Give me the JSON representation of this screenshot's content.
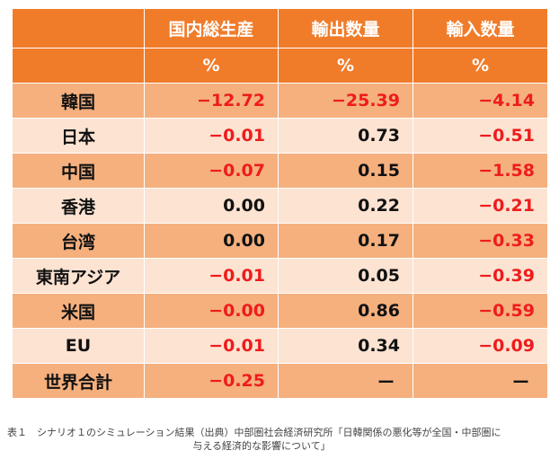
{
  "table": {
    "headers": [
      "",
      "国内総生産",
      "輸出数量",
      "輸入数量"
    ],
    "units": [
      "",
      "%",
      "%",
      "%"
    ],
    "rows": [
      {
        "label": "韓国",
        "values": [
          "−12.72",
          "−25.39",
          "−4.14"
        ],
        "negative": [
          true,
          true,
          true
        ]
      },
      {
        "label": "日本",
        "values": [
          "−0.01",
          "0.73",
          "−0.51"
        ],
        "negative": [
          true,
          false,
          true
        ]
      },
      {
        "label": "中国",
        "values": [
          "−0.07",
          "0.15",
          "−1.58"
        ],
        "negative": [
          true,
          false,
          true
        ]
      },
      {
        "label": "香港",
        "values": [
          "0.00",
          "0.22",
          "−0.21"
        ],
        "negative": [
          false,
          false,
          true
        ]
      },
      {
        "label": "台湾",
        "values": [
          "0.00",
          "0.17",
          "−0.33"
        ],
        "negative": [
          false,
          false,
          true
        ]
      },
      {
        "label": "東南アジア",
        "values": [
          "−0.01",
          "0.05",
          "−0.39"
        ],
        "negative": [
          true,
          false,
          true
        ]
      },
      {
        "label": "米国",
        "values": [
          "−0.00",
          "0.86",
          "−0.59"
        ],
        "negative": [
          true,
          false,
          true
        ]
      },
      {
        "label": "EU",
        "values": [
          "−0.01",
          "0.34",
          "−0.09"
        ],
        "negative": [
          true,
          false,
          true
        ]
      },
      {
        "label": "世界合計",
        "values": [
          "−0.25",
          "ー",
          "ー"
        ],
        "negative": [
          true,
          false,
          false
        ]
      }
    ]
  },
  "caption": {
    "line1": "表１　シナリオ１のシミュレーション結果（出典）中部圏社会経済研究所「日韓関係の悪化等が全国・中部圏に",
    "line2": "与える経済的な影響について」"
  },
  "colors": {
    "header": "#f07c2a",
    "row_dark": "#f5b07e",
    "row_light": "#fce3d2",
    "negative": "#ee1c1c"
  }
}
